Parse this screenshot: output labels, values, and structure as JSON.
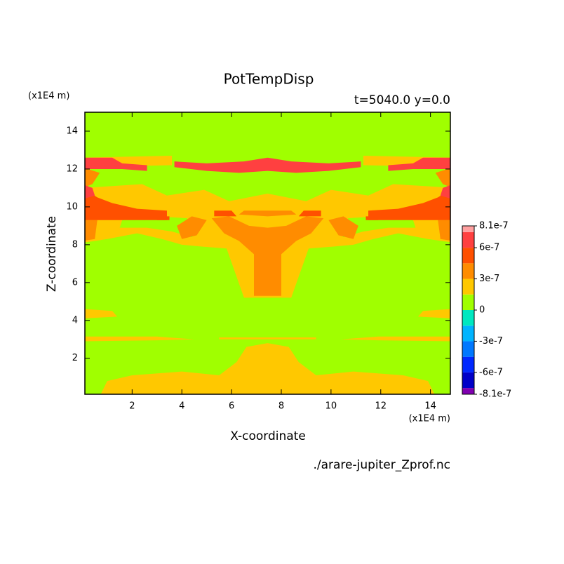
{
  "chart_data": {
    "type": "contour",
    "title": "PotTempDisp",
    "subtitle": "t=5040.0 y=0.0",
    "x_label": "X-coordinate",
    "y_label": "Z-coordinate",
    "x_unit": "(x1E4 m)",
    "y_unit": "(x1E4 m)",
    "source": "./arare-jupiter_Zprof.nc",
    "xlim": [
      0.1,
      14.8
    ],
    "ylim": [
      0.1,
      15.0
    ],
    "xticks": [
      2,
      4,
      6,
      8,
      10,
      12,
      14
    ],
    "yticks": [
      2,
      4,
      6,
      8,
      10,
      12,
      14
    ],
    "levels": [
      -8.1e-07,
      -7.5e-07,
      -6e-07,
      -4.5e-07,
      -3e-07,
      -1.5e-07,
      0,
      1.5e-07,
      3e-07,
      4.5e-07,
      6e-07,
      7.5e-07,
      8.1e-07
    ],
    "colors": [
      "#8000b0",
      "#0000c8",
      "#0028ff",
      "#0078ff",
      "#00b4ff",
      "#00e8c0",
      "#a0ff00",
      "#ffc800",
      "#ff8c00",
      "#ff5000",
      "#ff4040",
      "#ffa0a0"
    ],
    "colorbar_ticks": [
      8.1e-07,
      6e-07,
      3e-07,
      0,
      -3e-07,
      -6e-07,
      -8.1e-07
    ]
  }
}
